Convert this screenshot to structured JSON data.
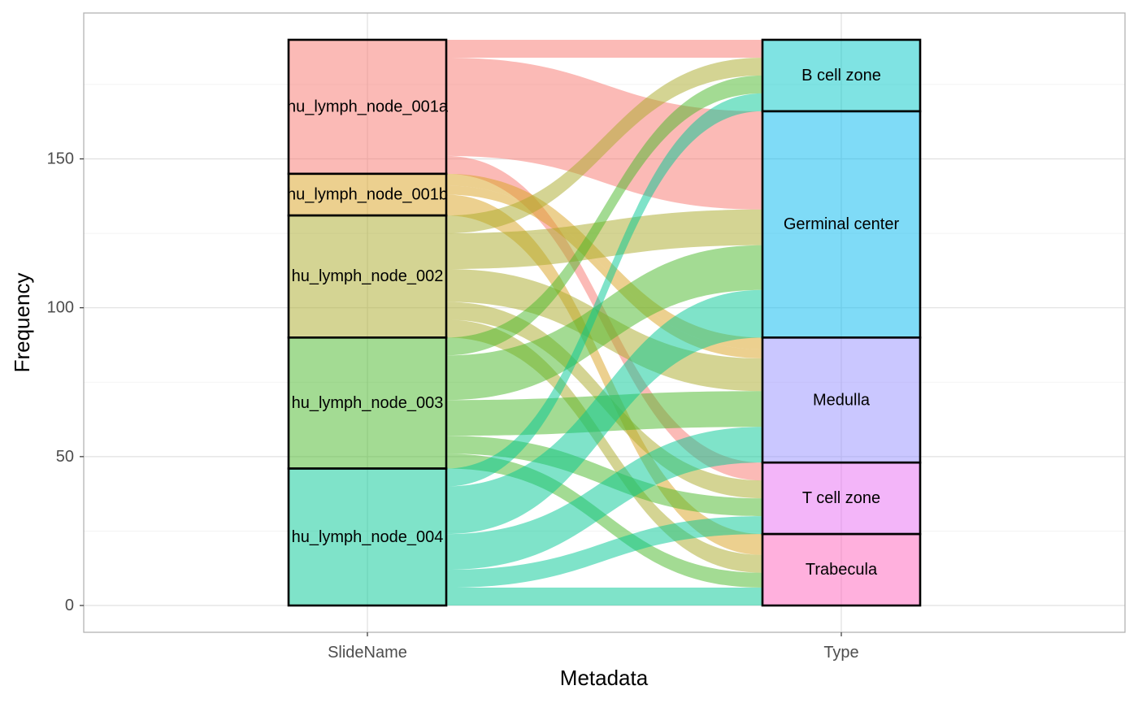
{
  "chart_data": {
    "type": "alluvial",
    "xlabel": "Metadata",
    "ylabel": "Frequency",
    "ylim": [
      -9,
      199
    ],
    "yticks": [
      0,
      50,
      100,
      150
    ],
    "grid": true,
    "axes": [
      {
        "name": "SlideName",
        "strata": [
          {
            "label": "hu_lymph_node_001a",
            "color": "#F8766D"
          },
          {
            "label": "hu_lymph_node_001b",
            "color": "#DAA11F"
          },
          {
            "label": "hu_lymph_node_002",
            "color": "#A9A927"
          },
          {
            "label": "hu_lymph_node_003",
            "color": "#48B827"
          },
          {
            "label": "hu_lymph_node_004",
            "color": "#00C794"
          }
        ]
      },
      {
        "name": "Type",
        "strata": [
          {
            "label": "B cell zone",
            "color": "#00C8C8"
          },
          {
            "label": "Germinal center",
            "color": "#00B7F0"
          },
          {
            "label": "Medulla",
            "color": "#9590FF"
          },
          {
            "label": "T cell zone",
            "color": "#E76BF3"
          },
          {
            "label": "Trabecula",
            "color": "#FF62BC"
          }
        ]
      }
    ],
    "flows": [
      {
        "from": "hu_lymph_node_001a",
        "to": "B cell zone",
        "value": 6
      },
      {
        "from": "hu_lymph_node_001a",
        "to": "Germinal center",
        "value": 33
      },
      {
        "from": "hu_lymph_node_001a",
        "to": "T cell zone",
        "value": 6
      },
      {
        "from": "hu_lymph_node_001b",
        "to": "Medulla",
        "value": 4
      },
      {
        "from": "hu_lymph_node_001b",
        "to": "Medulla",
        "value": 3
      },
      {
        "from": "hu_lymph_node_001b",
        "to": "Trabecula",
        "value": 7
      },
      {
        "from": "hu_lymph_node_002",
        "to": "B cell zone",
        "value": 6
      },
      {
        "from": "hu_lymph_node_002",
        "to": "Germinal center",
        "value": 12
      },
      {
        "from": "hu_lymph_node_002",
        "to": "Medulla",
        "value": 11
      },
      {
        "from": "hu_lymph_node_002",
        "to": "T cell zone",
        "value": 6
      },
      {
        "from": "hu_lymph_node_002",
        "to": "Trabecula",
        "value": 6
      },
      {
        "from": "hu_lymph_node_003",
        "to": "B cell zone",
        "value": 6
      },
      {
        "from": "hu_lymph_node_003",
        "to": "Germinal center",
        "value": 15
      },
      {
        "from": "hu_lymph_node_003",
        "to": "Medulla",
        "value": 12
      },
      {
        "from": "hu_lymph_node_003",
        "to": "T cell zone",
        "value": 6
      },
      {
        "from": "hu_lymph_node_003",
        "to": "Trabecula",
        "value": 5
      },
      {
        "from": "hu_lymph_node_004",
        "to": "B cell zone",
        "value": 6
      },
      {
        "from": "hu_lymph_node_004",
        "to": "Germinal center",
        "value": 16
      },
      {
        "from": "hu_lymph_node_004",
        "to": "Medulla",
        "value": 12
      },
      {
        "from": "hu_lymph_node_004",
        "to": "T cell zone",
        "value": 6
      },
      {
        "from": "hu_lymph_node_004",
        "to": "Trabecula",
        "value": 6
      }
    ]
  }
}
